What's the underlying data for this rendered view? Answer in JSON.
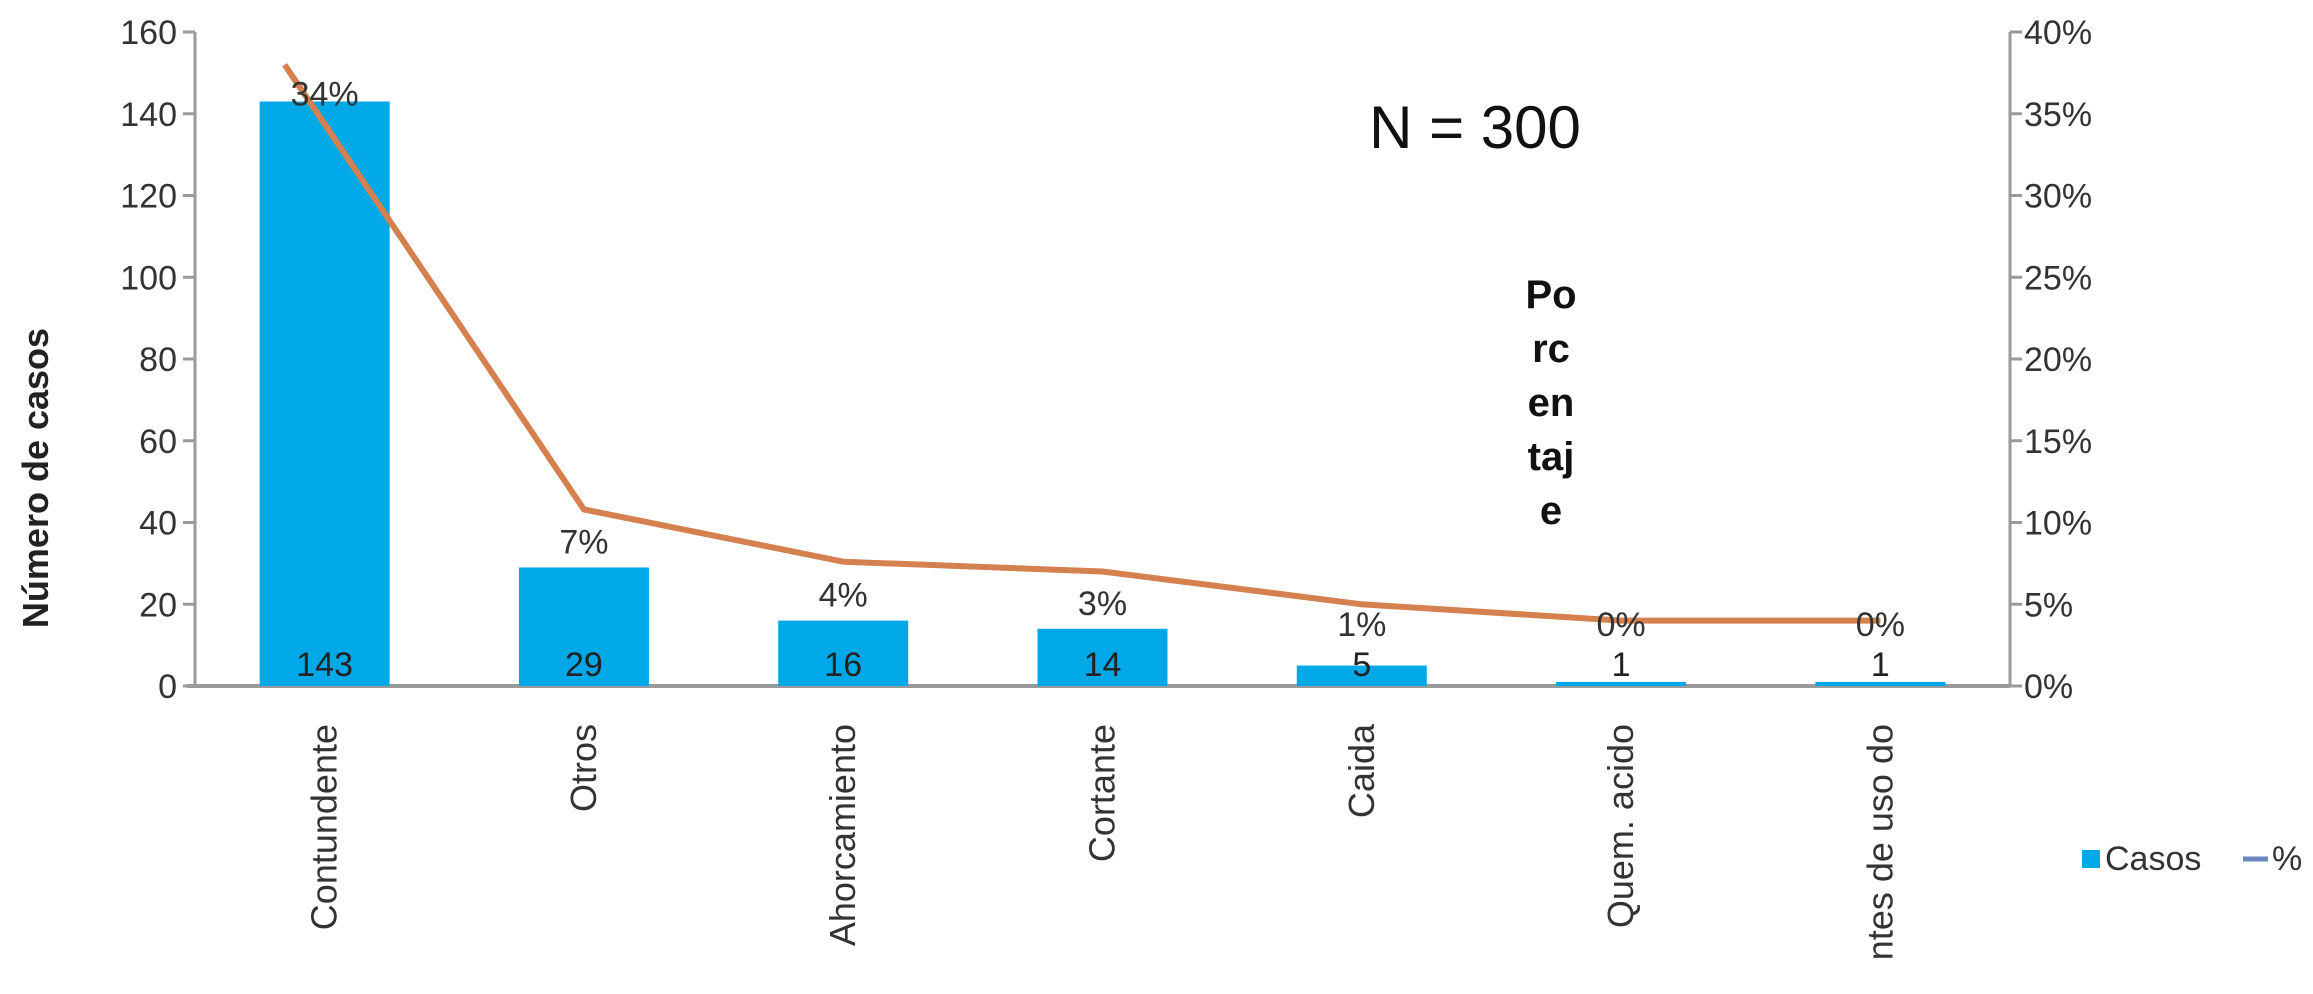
{
  "chart_data": {
    "type": "bar",
    "categories": [
      "Contundente",
      "Otros",
      "Ahorcamiento",
      "Cortante",
      "Caida",
      "Quem. acido",
      "ntes de uso do"
    ],
    "series": [
      {
        "name": "Casos",
        "type": "bar",
        "axis": "left",
        "values": [
          143,
          29,
          16,
          14,
          5,
          1,
          1
        ],
        "color": "#00a8e8"
      },
      {
        "name": "%",
        "type": "line",
        "axis": "right",
        "values": [
          38,
          10.8,
          7.6,
          7.0,
          5.0,
          4.0,
          4.0
        ],
        "color": "#d4804f"
      }
    ],
    "data_labels": [
      "34%",
      "7%",
      "4%",
      "3%",
      "1%",
      "0%",
      "0%"
    ],
    "ylabel": "Número de casos",
    "y2label": "Porcentaje",
    "y2label_lines": [
      "Po",
      "rc",
      "en",
      "taj",
      "e"
    ],
    "annotation": "N = 300",
    "ylim": [
      0,
      160
    ],
    "yticks": [
      0,
      20,
      40,
      60,
      80,
      100,
      120,
      140,
      160
    ],
    "y2lim": [
      0,
      40
    ],
    "y2ticks": [
      "0%",
      "5%",
      "10%",
      "15%",
      "20%",
      "25%",
      "30%",
      "35%",
      "40%"
    ],
    "legend": {
      "position": "right",
      "items": [
        "Casos",
        "%"
      ]
    },
    "grid": false
  }
}
